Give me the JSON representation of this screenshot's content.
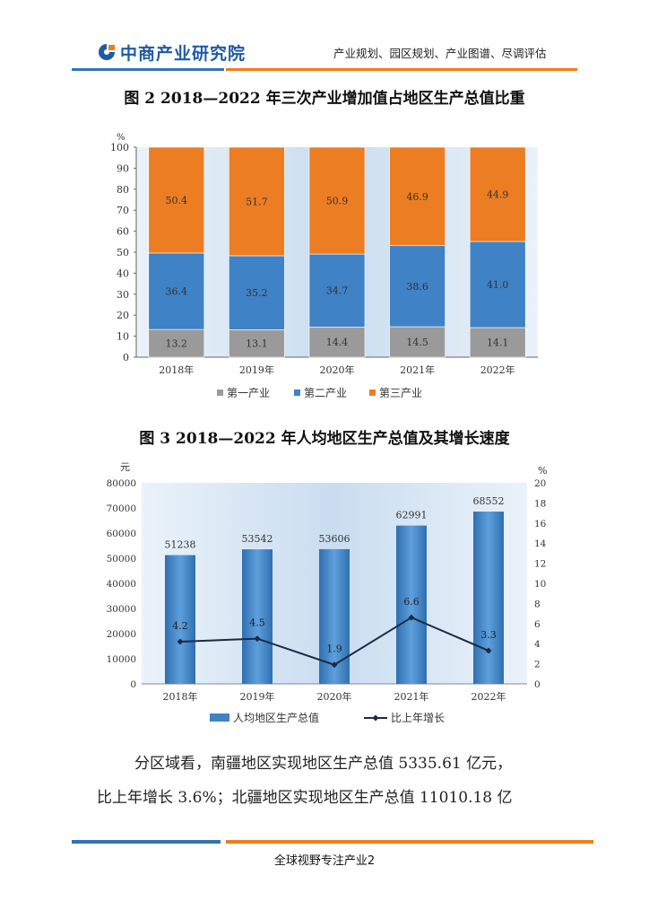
{
  "header": {
    "logo_text": "中商产业研究院",
    "tagline": "产业规划、园区规划、产业图谱、尽调评估"
  },
  "figure2": {
    "title": "图 2  2018—2022 年三次产业增加值占地区生产总值比重"
  },
  "figure3": {
    "title": "图 3  2018—2022 年人均地区生产总值及其增长速度"
  },
  "paragraph": {
    "line1": "分区域看，南疆地区实现地区生产总值 5335.61 亿元，",
    "line2": "比上年增长 3.6%；北疆地区实现地区生产总值 11010.18 亿"
  },
  "footer": {
    "text": "全球视野专注产业2"
  },
  "colors": {
    "primary": "#9a9a9a",
    "secondary": "#3f82c6",
    "tertiary": "#ec7d23",
    "line": "#1e2a44",
    "brand_blue": "#2f74b5",
    "brand_orange": "#f07c1b"
  },
  "chart_data": [
    {
      "type": "bar",
      "stacked": true,
      "categories": [
        "2018年",
        "2019年",
        "2020年",
        "2021年",
        "2022年"
      ],
      "series": [
        {
          "name": "第一产业",
          "values": [
            13.2,
            13.1,
            14.4,
            14.5,
            14.1
          ]
        },
        {
          "name": "第二产业",
          "values": [
            36.4,
            35.2,
            34.7,
            38.6,
            41.0
          ]
        },
        {
          "name": "第三产业",
          "values": [
            50.4,
            51.7,
            50.9,
            46.9,
            44.9
          ]
        }
      ],
      "value_labels": [
        [
          "13.2",
          "13.1",
          "14.4",
          "14.5",
          "14.1"
        ],
        [
          "36.4",
          "35.2",
          "34.7",
          "38.6",
          "41.0"
        ],
        [
          "50.4",
          "51.7",
          "50.9",
          "46.9",
          "44.9"
        ]
      ],
      "ylabel": "%",
      "ylim": [
        0,
        100
      ],
      "yticks": [
        "0",
        "10",
        "20",
        "30",
        "40",
        "50",
        "60",
        "70",
        "80",
        "90",
        "100"
      ],
      "legend_position": "bottom"
    },
    {
      "type": "bar",
      "categories": [
        "2018年",
        "2019年",
        "2020年",
        "2021年",
        "2022年"
      ],
      "series": [
        {
          "name": "人均地区生产总值",
          "type": "bar",
          "axis": "left",
          "values": [
            51238,
            53542,
            53606,
            62991,
            68552
          ],
          "labels": [
            "51238",
            "53542",
            "53606",
            "62991",
            "68552"
          ]
        },
        {
          "name": "比上年增长",
          "type": "line",
          "axis": "right",
          "values": [
            4.2,
            4.5,
            1.9,
            6.6,
            3.3
          ],
          "labels": [
            "4.2",
            "4.5",
            "1.9",
            "6.6",
            "3.3"
          ]
        }
      ],
      "ylabel_left": "元",
      "ylabel_right": "%",
      "ylim_left": [
        0,
        80000
      ],
      "ylim_right": [
        0,
        20
      ],
      "yticks_left": [
        "0",
        "10000",
        "20000",
        "30000",
        "40000",
        "50000",
        "60000",
        "70000",
        "80000"
      ],
      "yticks_right": [
        "0",
        "2",
        "4",
        "6",
        "8",
        "10",
        "12",
        "14",
        "16",
        "18",
        "20"
      ],
      "legend_position": "bottom"
    }
  ]
}
